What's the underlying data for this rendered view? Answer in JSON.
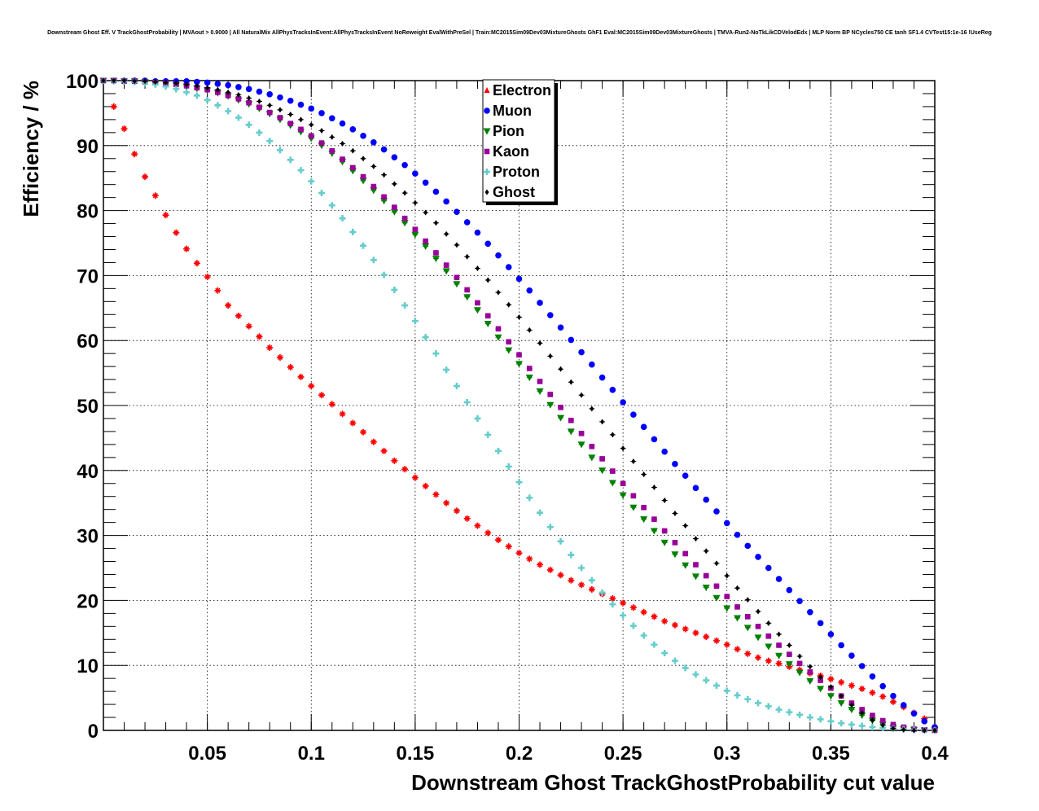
{
  "chart_data": {
    "type": "scatter",
    "title": "Downstream Ghost Eff. V TrackGhostProbability | MVAout > 0.9000 | All NaturalMix AllPhysTracksInEvent:AllPhysTracksInEvent NoReweight EvalWithPreSel | Train:MC2015Sim09Dev03MixtureGhosts GhF1 Eval:MC2015Sim09Dev03MixtureGhosts | TMVA-Run2-NoTkLikCDVelodEdx | MLP Norm BP NCycles750 CE tanh SF1.4 CVTest15:1e-16 !UseReg",
    "xlabel": "Downstream Ghost TrackGhostProbability cut value",
    "ylabel": "Efficiency / %",
    "xlim": [
      0,
      0.4
    ],
    "ylim": [
      0,
      100
    ],
    "grid": true,
    "legend_position": "top-center",
    "x_ticks": [
      "0.05",
      "0.1",
      "0.15",
      "0.2",
      "0.25",
      "0.3",
      "0.35",
      "0.4"
    ],
    "y_ticks": [
      "0",
      "10",
      "20",
      "30",
      "40",
      "50",
      "60",
      "70",
      "80",
      "90",
      "100"
    ],
    "x": [
      0.0,
      0.005,
      0.01,
      0.015,
      0.02,
      0.025,
      0.03,
      0.035,
      0.04,
      0.045,
      0.05,
      0.055,
      0.06,
      0.065,
      0.07,
      0.075,
      0.08,
      0.085,
      0.09,
      0.095,
      0.1,
      0.105,
      0.11,
      0.115,
      0.12,
      0.125,
      0.13,
      0.135,
      0.14,
      0.145,
      0.15,
      0.155,
      0.16,
      0.165,
      0.17,
      0.175,
      0.18,
      0.185,
      0.19,
      0.195,
      0.2,
      0.205,
      0.21,
      0.215,
      0.22,
      0.225,
      0.23,
      0.235,
      0.24,
      0.245,
      0.25,
      0.255,
      0.26,
      0.265,
      0.27,
      0.275,
      0.28,
      0.285,
      0.29,
      0.295,
      0.3,
      0.305,
      0.31,
      0.315,
      0.32,
      0.325,
      0.33,
      0.335,
      0.34,
      0.345,
      0.35,
      0.355,
      0.36,
      0.365,
      0.37,
      0.375,
      0.38,
      0.385,
      0.39,
      0.395,
      0.4
    ],
    "series": [
      {
        "name": "Electron",
        "color": "#ff0000",
        "marker": "star",
        "values": [
          100.0,
          96.0,
          92.6,
          88.7,
          85.2,
          82.3,
          79.3,
          76.6,
          74.1,
          71.9,
          69.8,
          67.7,
          65.4,
          63.8,
          62.2,
          60.6,
          58.9,
          57.4,
          55.9,
          54.4,
          53.0,
          51.6,
          50.2,
          48.7,
          47.3,
          45.9,
          44.4,
          43.0,
          41.5,
          40.2,
          38.9,
          37.6,
          36.3,
          35.0,
          33.8,
          32.6,
          31.5,
          30.4,
          29.3,
          28.3,
          27.3,
          26.4,
          25.5,
          24.7,
          23.9,
          23.1,
          22.4,
          21.7,
          21.0,
          20.3,
          19.6,
          18.9,
          18.2,
          17.5,
          16.8,
          16.2,
          15.6,
          15.0,
          14.4,
          13.8,
          13.2,
          12.5,
          11.8,
          11.2,
          10.7,
          10.3,
          9.8,
          9.3,
          8.8,
          8.4,
          7.9,
          7.4,
          6.9,
          6.4,
          5.8,
          5.2,
          4.4,
          3.6,
          2.7,
          1.8,
          0.5
        ]
      },
      {
        "name": "Muon",
        "color": "#0000ff",
        "marker": "circle",
        "values": [
          100.0,
          100.0,
          100.0,
          100.0,
          100.0,
          99.9,
          99.9,
          99.9,
          99.9,
          99.8,
          99.7,
          99.5,
          99.3,
          99.0,
          98.7,
          98.3,
          97.9,
          97.4,
          96.9,
          96.3,
          95.7,
          95.0,
          94.2,
          93.4,
          92.5,
          91.5,
          90.5,
          89.4,
          88.2,
          87.0,
          85.7,
          84.3,
          82.9,
          81.4,
          79.8,
          78.2,
          76.6,
          74.9,
          73.1,
          71.3,
          69.5,
          67.7,
          65.8,
          63.9,
          62.0,
          60.1,
          58.2,
          56.3,
          54.3,
          52.4,
          50.5,
          48.6,
          46.7,
          44.8,
          42.9,
          41.0,
          39.2,
          37.3,
          35.5,
          33.7,
          31.9,
          30.1,
          28.4,
          26.7,
          25.0,
          23.3,
          21.6,
          19.9,
          18.2,
          16.5,
          14.8,
          13.1,
          11.5,
          9.9,
          8.3,
          6.8,
          5.3,
          3.9,
          2.6,
          1.4,
          0.5
        ]
      },
      {
        "name": "Pion",
        "color": "#008000",
        "marker": "triangle-down",
        "values": [
          100.0,
          100.0,
          99.9,
          99.9,
          99.8,
          99.7,
          99.5,
          99.3,
          99.1,
          98.8,
          98.5,
          98.1,
          97.6,
          97.0,
          96.4,
          95.7,
          94.9,
          94.0,
          93.1,
          92.1,
          91.1,
          90.0,
          88.8,
          87.5,
          86.1,
          84.6,
          83.1,
          81.5,
          79.8,
          78.1,
          76.3,
          74.5,
          72.6,
          70.7,
          68.7,
          66.7,
          64.7,
          62.6,
          60.5,
          58.5,
          56.4,
          54.3,
          52.2,
          50.1,
          48.1,
          46.0,
          44.0,
          42.0,
          40.0,
          38.1,
          36.2,
          34.3,
          32.5,
          30.7,
          28.9,
          27.1,
          25.4,
          23.7,
          22.0,
          20.4,
          18.8,
          17.3,
          15.8,
          14.3,
          12.9,
          11.5,
          10.2,
          8.9,
          7.6,
          6.4,
          5.3,
          4.2,
          3.2,
          2.3,
          1.5,
          0.9,
          0.4,
          0.2,
          0.1,
          0.0,
          0.0
        ]
      },
      {
        "name": "Kaon",
        "color": "#990099",
        "marker": "square",
        "values": [
          100.0,
          100.0,
          99.9,
          99.9,
          99.8,
          99.7,
          99.6,
          99.4,
          99.2,
          98.9,
          98.6,
          98.2,
          97.7,
          97.2,
          96.6,
          95.9,
          95.1,
          94.3,
          93.4,
          92.5,
          91.5,
          90.4,
          89.2,
          87.9,
          86.6,
          85.2,
          83.7,
          82.1,
          80.5,
          78.8,
          77.1,
          75.3,
          73.5,
          71.6,
          69.7,
          67.8,
          65.8,
          63.8,
          61.8,
          59.8,
          57.8,
          55.7,
          53.7,
          51.7,
          49.7,
          47.7,
          45.7,
          43.7,
          41.8,
          39.9,
          38.0,
          36.1,
          34.3,
          32.5,
          30.7,
          28.9,
          27.2,
          25.5,
          23.8,
          22.2,
          20.6,
          19.0,
          17.5,
          16.0,
          14.5,
          13.1,
          11.7,
          10.3,
          9.0,
          7.7,
          6.5,
          5.3,
          4.2,
          3.2,
          2.3,
          1.5,
          0.9,
          0.5,
          0.2,
          0.1,
          0.0
        ]
      },
      {
        "name": "Proton",
        "color": "#66cccc",
        "marker": "cross",
        "values": [
          100.0,
          99.9,
          99.9,
          99.8,
          99.6,
          99.4,
          99.1,
          98.7,
          98.2,
          97.7,
          97.0,
          96.2,
          95.3,
          94.3,
          93.2,
          92.0,
          90.7,
          89.3,
          87.8,
          86.2,
          84.5,
          82.7,
          80.8,
          78.8,
          76.7,
          74.6,
          72.4,
          70.1,
          67.8,
          65.4,
          63.0,
          60.5,
          58.0,
          55.5,
          53.0,
          50.5,
          48.0,
          45.5,
          43.0,
          40.6,
          38.2,
          35.8,
          33.5,
          31.3,
          29.1,
          27.0,
          25.0,
          23.1,
          21.2,
          19.4,
          17.7,
          16.1,
          14.6,
          13.2,
          11.9,
          10.7,
          9.6,
          8.6,
          7.7,
          6.9,
          6.1,
          5.4,
          4.8,
          4.2,
          3.7,
          3.2,
          2.8,
          2.4,
          2.0,
          1.7,
          1.4,
          1.1,
          0.9,
          0.7,
          0.5,
          0.4,
          0.3,
          0.2,
          0.1,
          0.0,
          0.0
        ]
      },
      {
        "name": "Ghost",
        "color": "#000000",
        "marker": "diamond",
        "values": [
          100.0,
          100.0,
          100.0,
          99.9,
          99.9,
          99.8,
          99.7,
          99.6,
          99.4,
          99.2,
          98.9,
          98.6,
          98.2,
          97.8,
          97.3,
          96.8,
          96.2,
          95.5,
          94.8,
          94.0,
          93.2,
          92.3,
          91.3,
          90.3,
          89.2,
          88.0,
          86.8,
          85.5,
          84.1,
          82.7,
          81.2,
          79.7,
          78.1,
          76.4,
          74.7,
          72.9,
          71.1,
          69.3,
          67.4,
          65.5,
          63.6,
          61.6,
          59.6,
          57.6,
          55.6,
          53.6,
          51.6,
          49.5,
          47.5,
          45.5,
          43.4,
          41.4,
          39.4,
          37.4,
          35.4,
          33.4,
          31.5,
          29.5,
          27.6,
          25.7,
          23.8,
          21.9,
          20.1,
          18.3,
          16.5,
          14.8,
          13.1,
          11.4,
          9.8,
          8.2,
          6.7,
          5.3,
          3.9,
          2.7,
          1.6,
          0.8,
          0.3,
          0.1,
          0.0,
          0.0,
          0.0
        ]
      }
    ]
  }
}
